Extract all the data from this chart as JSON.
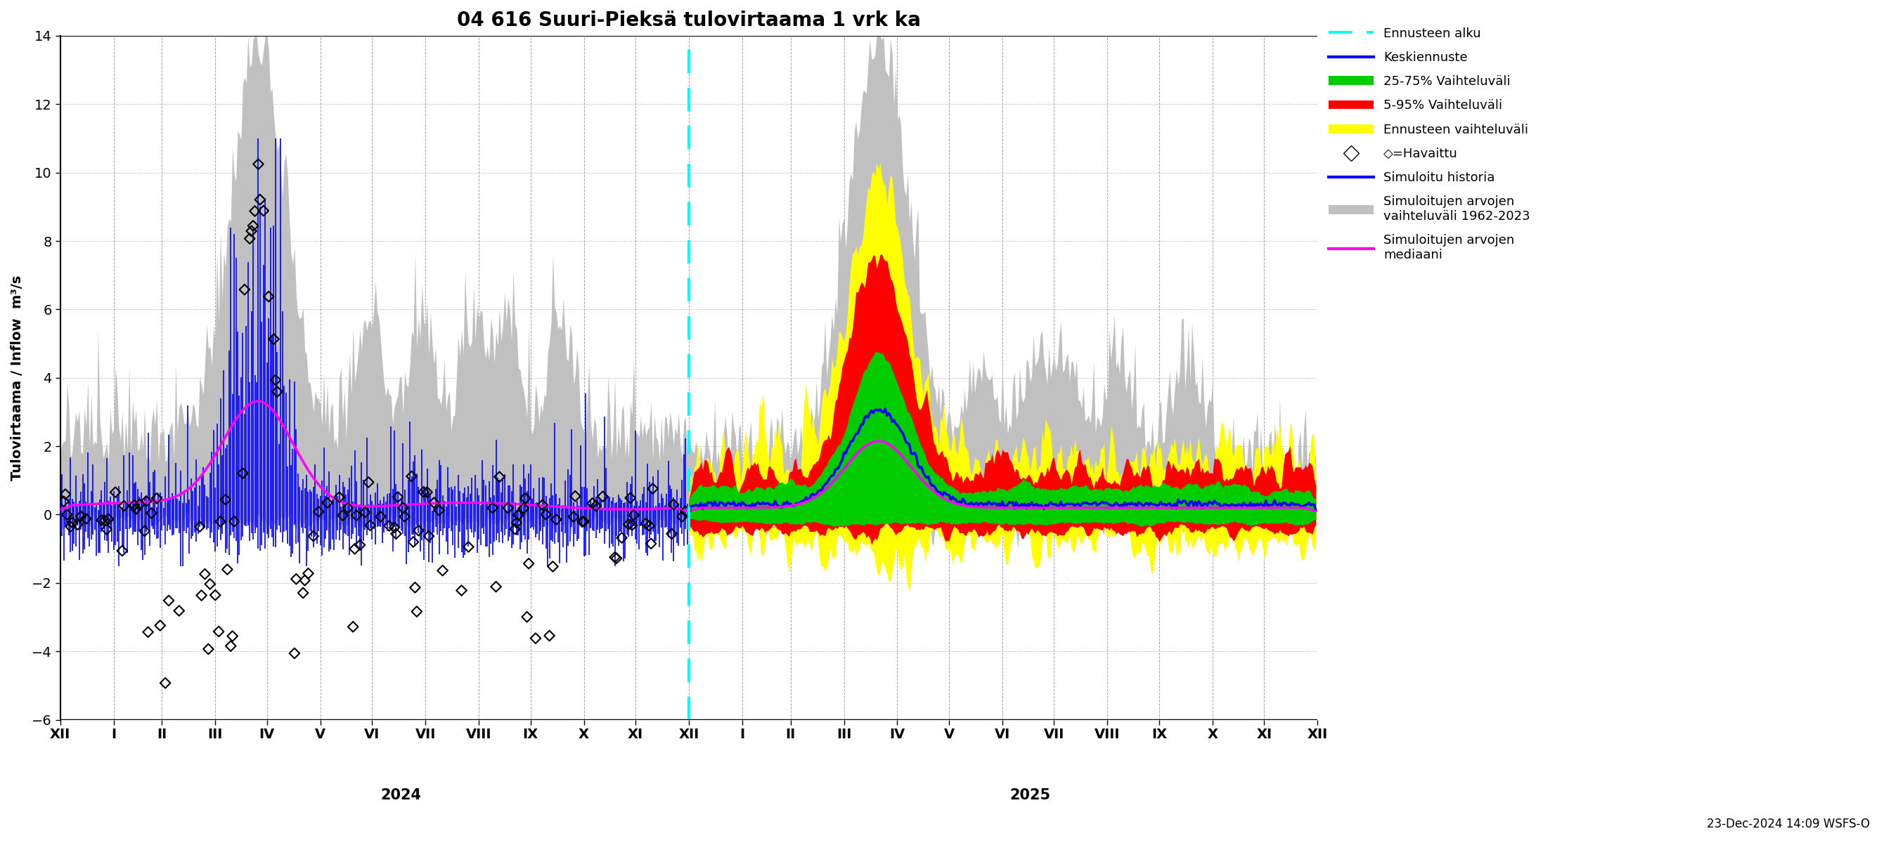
{
  "title": "04 616 Suuri-Pieksä tulovirtaama 1 vrk ka",
  "ylabel": "Tulovirtaama / Inflow  m³/s",
  "ylim": [
    -6,
    14
  ],
  "yticks": [
    -6,
    -4,
    -2,
    0,
    2,
    4,
    6,
    8,
    10,
    12,
    14
  ],
  "footnote": "23-Dec-2024 14:09 WSFS-O",
  "ennusteen_alku_color": "#00ffff",
  "keskiennuste_color": "#0000ff",
  "vaihteluvali_25_75_color": "#00cc00",
  "vaihteluvali_5_95_color": "#ff0000",
  "ennusteen_vaihteluvali_color": "#ffff00",
  "simuloitu_historia_color": "#0000ff",
  "mediaani_color": "#ff00ff",
  "havaittu_color": "#000000",
  "hist_band_color": "#c0c0c0",
  "legend_entries": [
    "Ennusteen alku",
    "Keskiennuste",
    "25-75% Vaihteluväli",
    "5-95% Vaihteluväli",
    "Ennusteen vaihteluväli",
    "◇=Havaittu",
    "Simuloitu historia",
    "Simuloitujen arvojen vaihteluväli 1962-2023",
    "Simuloitujen arvojen mediaani"
  ]
}
